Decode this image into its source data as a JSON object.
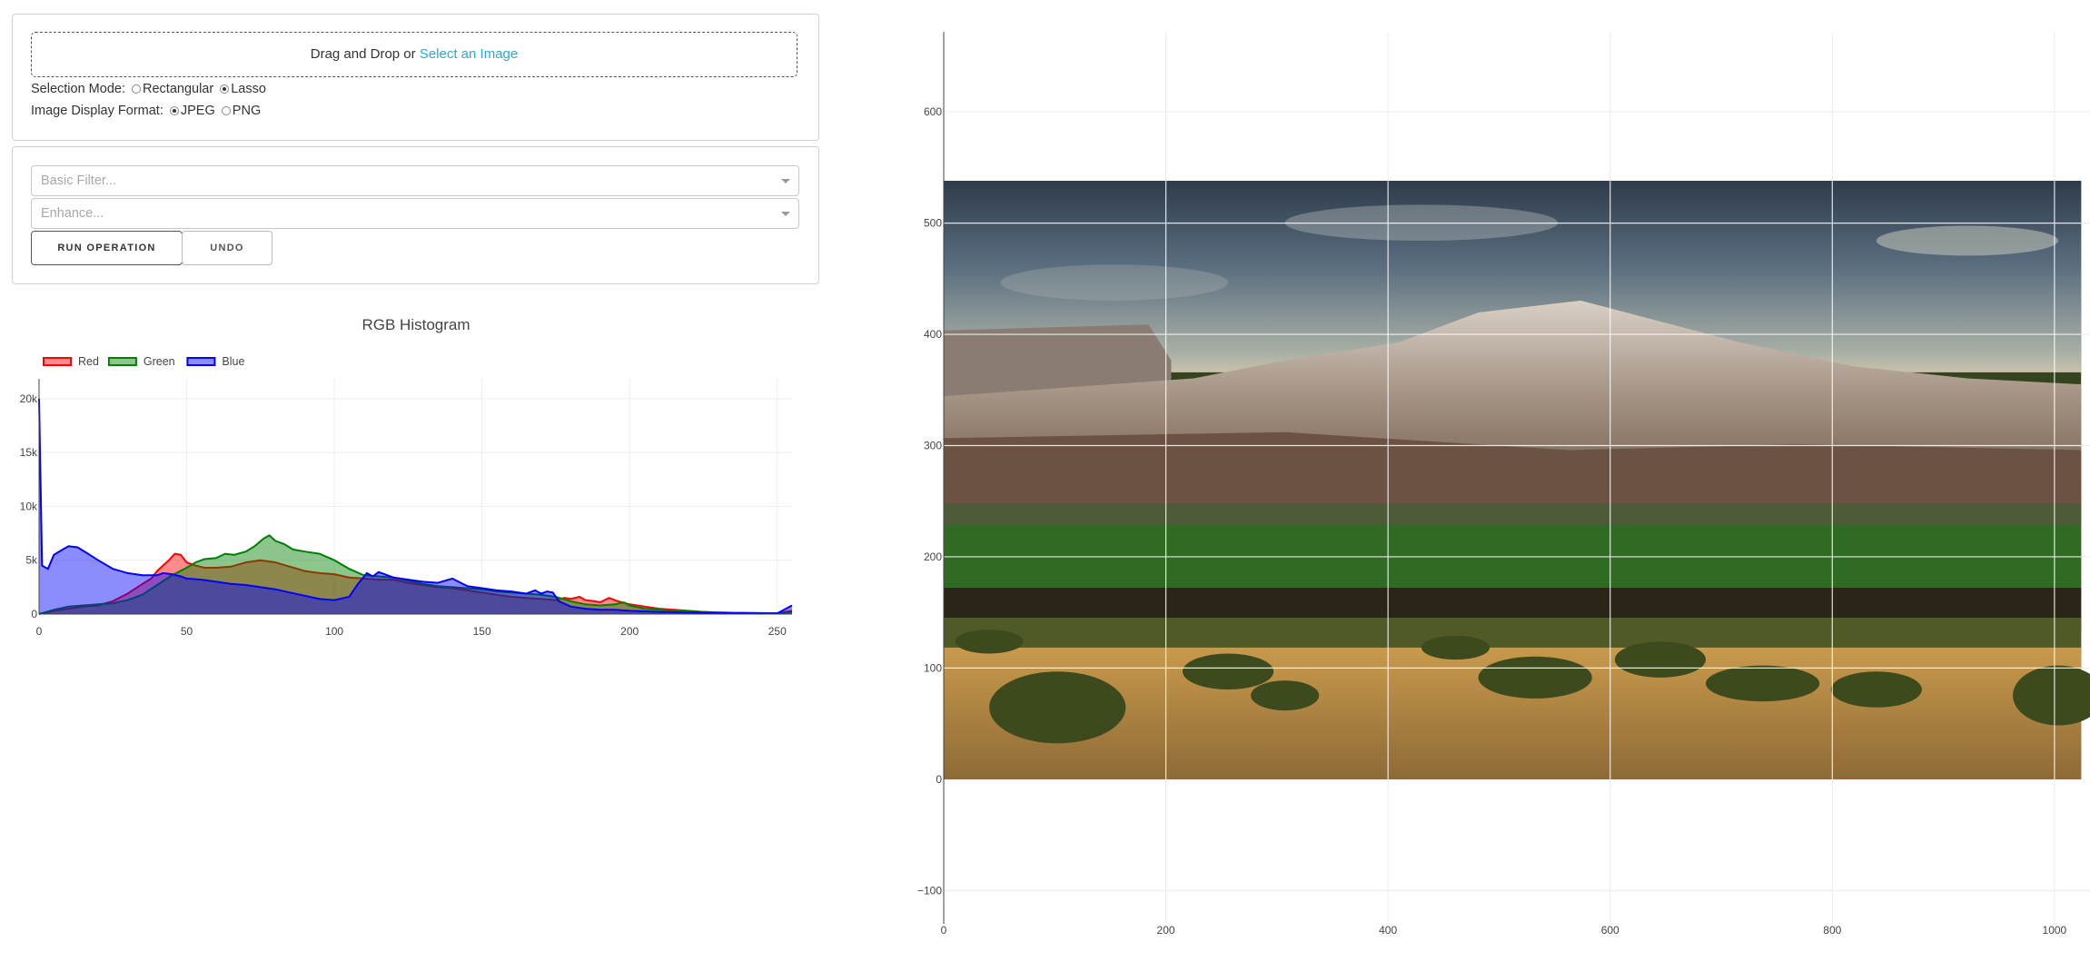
{
  "upload": {
    "prompt": "Drag and Drop or",
    "link": "Select an Image"
  },
  "selection_mode": {
    "label": "Selection Mode:",
    "options": [
      "Rectangular",
      "Lasso"
    ],
    "selected": "Lasso"
  },
  "display_format": {
    "label": "Image Display Format:",
    "options": [
      "JPEG",
      "PNG"
    ],
    "selected": "JPEG"
  },
  "filters": {
    "basic_placeholder": "Basic Filter...",
    "enhance_placeholder": "Enhance..."
  },
  "buttons": {
    "run": "RUN OPERATION",
    "undo": "UNDO"
  },
  "chart_data": [
    {
      "type": "area",
      "title": "RGB Histogram",
      "xlim": [
        0,
        255
      ],
      "ylim": [
        0,
        21000
      ],
      "x_ticks": [
        0,
        50,
        100,
        150,
        200,
        250
      ],
      "y_ticks": [
        0,
        5000,
        10000,
        15000,
        20000
      ],
      "y_tick_labels": [
        "0",
        "5k",
        "10k",
        "15k",
        "20k"
      ],
      "legend": "top-left",
      "colors": {
        "Red": "#ff0000",
        "Green": "#008000",
        "Blue": "#0000ff"
      },
      "series": [
        {
          "name": "Red",
          "points": [
            [
              0,
              0
            ],
            [
              5,
              300
            ],
            [
              10,
              500
            ],
            [
              15,
              700
            ],
            [
              20,
              800
            ],
            [
              25,
              1200
            ],
            [
              30,
              1900
            ],
            [
              35,
              2800
            ],
            [
              38,
              3300
            ],
            [
              40,
              4000
            ],
            [
              42,
              4500
            ],
            [
              44,
              5000
            ],
            [
              46,
              5600
            ],
            [
              48,
              5500
            ],
            [
              50,
              4800
            ],
            [
              53,
              4500
            ],
            [
              56,
              4300
            ],
            [
              60,
              4300
            ],
            [
              65,
              4400
            ],
            [
              70,
              4800
            ],
            [
              75,
              5000
            ],
            [
              80,
              4800
            ],
            [
              85,
              4400
            ],
            [
              90,
              4000
            ],
            [
              95,
              3800
            ],
            [
              100,
              3700
            ],
            [
              105,
              3400
            ],
            [
              110,
              3300
            ],
            [
              115,
              3200
            ],
            [
              120,
              3200
            ],
            [
              125,
              2900
            ],
            [
              130,
              2700
            ],
            [
              135,
              2500
            ],
            [
              140,
              2400
            ],
            [
              145,
              2200
            ],
            [
              150,
              2000
            ],
            [
              155,
              1800
            ],
            [
              160,
              1600
            ],
            [
              165,
              1500
            ],
            [
              170,
              1400
            ],
            [
              175,
              1300
            ],
            [
              178,
              1500
            ],
            [
              180,
              1400
            ],
            [
              183,
              1600
            ],
            [
              185,
              1300
            ],
            [
              188,
              1200
            ],
            [
              190,
              1100
            ],
            [
              193,
              1500
            ],
            [
              196,
              1200
            ],
            [
              200,
              900
            ],
            [
              205,
              700
            ],
            [
              210,
              500
            ],
            [
              215,
              400
            ],
            [
              220,
              300
            ],
            [
              225,
              200
            ],
            [
              230,
              150
            ],
            [
              240,
              100
            ],
            [
              250,
              80
            ],
            [
              255,
              300
            ]
          ]
        },
        {
          "name": "Green",
          "points": [
            [
              0,
              0
            ],
            [
              5,
              400
            ],
            [
              10,
              700
            ],
            [
              15,
              800
            ],
            [
              20,
              900
            ],
            [
              25,
              1000
            ],
            [
              30,
              1300
            ],
            [
              35,
              1800
            ],
            [
              40,
              2700
            ],
            [
              45,
              3600
            ],
            [
              50,
              4300
            ],
            [
              53,
              4800
            ],
            [
              56,
              5100
            ],
            [
              60,
              5200
            ],
            [
              63,
              5600
            ],
            [
              66,
              5500
            ],
            [
              70,
              5800
            ],
            [
              73,
              6300
            ],
            [
              76,
              7000
            ],
            [
              78,
              7300
            ],
            [
              80,
              6800
            ],
            [
              83,
              6500
            ],
            [
              86,
              6000
            ],
            [
              90,
              5800
            ],
            [
              95,
              5600
            ],
            [
              100,
              5000
            ],
            [
              105,
              4200
            ],
            [
              110,
              3600
            ],
            [
              115,
              3500
            ],
            [
              120,
              3400
            ],
            [
              125,
              3100
            ],
            [
              130,
              2800
            ],
            [
              135,
              2600
            ],
            [
              140,
              2500
            ],
            [
              145,
              2400
            ],
            [
              150,
              2300
            ],
            [
              155,
              2100
            ],
            [
              160,
              2000
            ],
            [
              165,
              1900
            ],
            [
              170,
              1800
            ],
            [
              175,
              1600
            ],
            [
              180,
              1200
            ],
            [
              185,
              900
            ],
            [
              190,
              800
            ],
            [
              195,
              900
            ],
            [
              198,
              1100
            ],
            [
              200,
              800
            ],
            [
              205,
              500
            ],
            [
              210,
              400
            ],
            [
              215,
              300
            ],
            [
              220,
              250
            ],
            [
              230,
              150
            ],
            [
              240,
              100
            ],
            [
              250,
              80
            ],
            [
              255,
              200
            ]
          ]
        },
        {
          "name": "Blue",
          "points": [
            [
              0,
              20000
            ],
            [
              1,
              4500
            ],
            [
              3,
              4200
            ],
            [
              5,
              5500
            ],
            [
              8,
              6000
            ],
            [
              10,
              6300
            ],
            [
              13,
              6200
            ],
            [
              16,
              5700
            ],
            [
              20,
              5000
            ],
            [
              25,
              4200
            ],
            [
              30,
              3800
            ],
            [
              35,
              3600
            ],
            [
              40,
              3600
            ],
            [
              42,
              3800
            ],
            [
              45,
              3700
            ],
            [
              48,
              3500
            ],
            [
              50,
              3300
            ],
            [
              55,
              3200
            ],
            [
              60,
              3000
            ],
            [
              65,
              2800
            ],
            [
              70,
              2700
            ],
            [
              75,
              2500
            ],
            [
              80,
              2300
            ],
            [
              85,
              2000
            ],
            [
              90,
              1700
            ],
            [
              95,
              1400
            ],
            [
              100,
              1300
            ],
            [
              105,
              1600
            ],
            [
              108,
              2800
            ],
            [
              111,
              3800
            ],
            [
              113,
              3500
            ],
            [
              115,
              3900
            ],
            [
              118,
              3600
            ],
            [
              120,
              3400
            ],
            [
              125,
              3200
            ],
            [
              130,
              3000
            ],
            [
              135,
              2900
            ],
            [
              140,
              3300
            ],
            [
              145,
              2600
            ],
            [
              150,
              2400
            ],
            [
              155,
              2200
            ],
            [
              160,
              2100
            ],
            [
              165,
              1900
            ],
            [
              168,
              2200
            ],
            [
              170,
              1900
            ],
            [
              172,
              2100
            ],
            [
              174,
              2000
            ],
            [
              176,
              1200
            ],
            [
              180,
              700
            ],
            [
              185,
              500
            ],
            [
              190,
              400
            ],
            [
              195,
              400
            ],
            [
              200,
              300
            ],
            [
              205,
              250
            ],
            [
              210,
              200
            ],
            [
              220,
              150
            ],
            [
              230,
              100
            ],
            [
              240,
              80
            ],
            [
              250,
              70
            ],
            [
              255,
              800
            ]
          ]
        }
      ]
    },
    {
      "type": "image",
      "xlim": [
        0,
        1032
      ],
      "ylim": [
        -130,
        672
      ],
      "x_ticks": [
        0,
        200,
        400,
        600,
        800,
        1000
      ],
      "y_ticks": [
        -100,
        0,
        100,
        200,
        300,
        400,
        500,
        600
      ],
      "y_tick_labels": [
        "−100",
        "0",
        "100",
        "200",
        "300",
        "400",
        "500",
        "600"
      ],
      "image_extent": {
        "x": [
          0,
          1024
        ],
        "y": [
          0,
          538
        ]
      }
    }
  ]
}
